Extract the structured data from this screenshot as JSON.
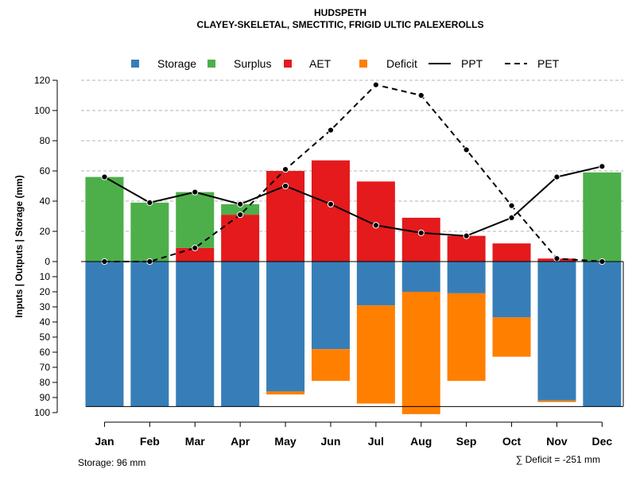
{
  "chart_data": {
    "type": "bar",
    "title": "HUDSPETH",
    "subtitle": "CLAYEY-SKELETAL, SMECTITIC, FRIGID ULTIC PALEXEROLLS",
    "ylabel": "Inputs | Outputs | Storage    (mm)",
    "categories": [
      "Jan",
      "Feb",
      "Mar",
      "Apr",
      "May",
      "Jun",
      "Jul",
      "Aug",
      "Sep",
      "Oct",
      "Nov",
      "Dec"
    ],
    "upper_ylim": [
      0,
      120
    ],
    "upper_ticks": [
      0,
      20,
      40,
      60,
      80,
      100,
      120
    ],
    "lower_ylim": [
      0,
      100
    ],
    "lower_ticks": [
      10,
      20,
      30,
      40,
      50,
      60,
      70,
      80,
      90,
      100
    ],
    "legend": {
      "position": "top",
      "entries": [
        {
          "label": "Storage",
          "type": "square",
          "color": "#377EB8"
        },
        {
          "label": "Surplus",
          "type": "square",
          "color": "#4DAF4A"
        },
        {
          "label": "AET",
          "type": "square",
          "color": "#E41A1C"
        },
        {
          "label": "Deficit",
          "type": "square",
          "color": "#FF7F00"
        },
        {
          "label": "PPT",
          "type": "solid-line",
          "color": "#000000"
        },
        {
          "label": "PET",
          "type": "dashed-line",
          "color": "#000000"
        }
      ]
    },
    "series": [
      {
        "name": "AET",
        "values": [
          0,
          0,
          9,
          31,
          60,
          67,
          53,
          29,
          17,
          12,
          2,
          0
        ]
      },
      {
        "name": "Surplus",
        "values": [
          56,
          39,
          37,
          7,
          0,
          0,
          0,
          0,
          0,
          0,
          0,
          59
        ]
      },
      {
        "name": "Storage",
        "values": [
          96,
          96,
          96,
          96,
          86,
          58,
          29,
          20,
          21,
          37,
          92,
          96
        ]
      },
      {
        "name": "Deficit",
        "values": [
          0,
          0,
          0,
          0,
          2,
          21,
          65,
          81,
          58,
          26,
          1,
          0
        ]
      },
      {
        "name": "PPT",
        "values": [
          56,
          39,
          46,
          38,
          50,
          38,
          24,
          19,
          17,
          29,
          56,
          63
        ]
      },
      {
        "name": "PET",
        "values": [
          0,
          0,
          9,
          31,
          61,
          87,
          117,
          110,
          74,
          37,
          2,
          0
        ]
      }
    ],
    "storage_capacity": 96,
    "footnote_storage": "Storage: 96 mm",
    "footnote_deficit": "∑ Deficit = -251 mm"
  }
}
